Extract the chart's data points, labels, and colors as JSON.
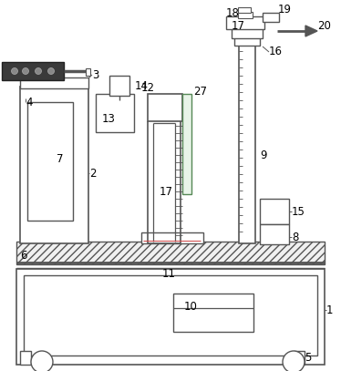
{
  "bg_color": "#ffffff",
  "line_color": "#555555",
  "label_fontsize": 8.5,
  "fig_width": 3.74,
  "fig_height": 4.07,
  "dpi": 100
}
